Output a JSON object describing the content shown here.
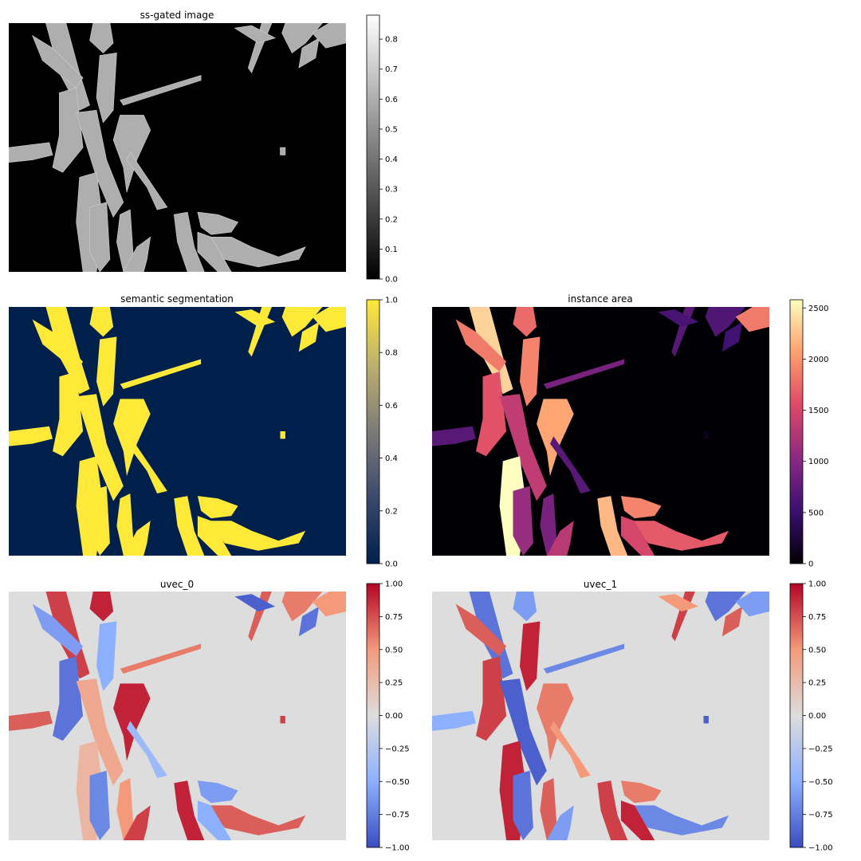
{
  "chart_data": [
    {
      "type": "heatmap",
      "title": "ss-gated image",
      "colormap": "gray",
      "background_value": 0.0,
      "cell_value": 0.6,
      "colorbar": {
        "range": [
          0.0,
          0.88
        ],
        "ticks": [
          "0.0",
          "0.1",
          "0.2",
          "0.3",
          "0.4",
          "0.5",
          "0.6",
          "0.7",
          "0.8"
        ]
      }
    },
    {
      "type": "heatmap",
      "title": "semantic segmentation",
      "colormap": "cividis",
      "background_value": 0.0,
      "cell_value": 1.0,
      "colorbar": {
        "range": [
          0.0,
          1.0
        ],
        "ticks": [
          "0.0",
          "0.2",
          "0.4",
          "0.6",
          "0.8",
          "1.0"
        ]
      }
    },
    {
      "type": "heatmap",
      "title": "instance area",
      "colormap": "magma",
      "background_value": 0,
      "colorbar": {
        "range": [
          0,
          2580
        ],
        "ticks": [
          "0",
          "500",
          "1000",
          "1500",
          "2000",
          "2500"
        ]
      }
    },
    {
      "type": "heatmap",
      "title": "uvec_0",
      "colormap": "coolwarm",
      "background_value": 0.0,
      "colorbar": {
        "range": [
          -1.0,
          1.0
        ],
        "ticks": [
          "−1.00",
          "−0.75",
          "−0.50",
          "−0.25",
          "0.00",
          "0.25",
          "0.50",
          "0.75",
          "1.00"
        ]
      }
    },
    {
      "type": "heatmap",
      "title": "uvec_1",
      "colormap": "coolwarm",
      "background_value": 0.0,
      "colorbar": {
        "range": [
          -1.0,
          1.0
        ],
        "ticks": [
          "−1.00",
          "−0.75",
          "−0.50",
          "−0.25",
          "0.00",
          "0.25",
          "0.50",
          "0.75",
          "1.00"
        ]
      }
    }
  ]
}
